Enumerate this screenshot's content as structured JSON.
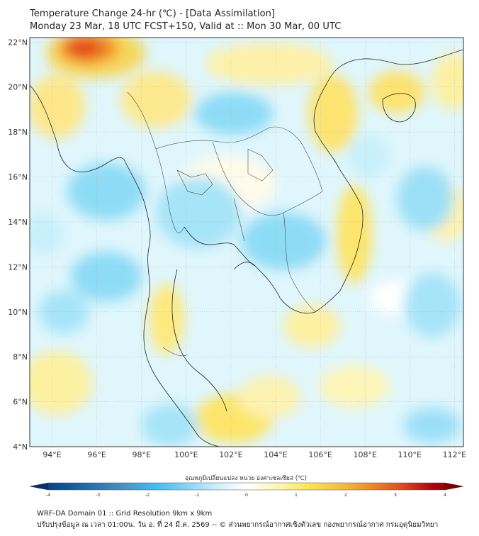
{
  "header": {
    "title": "Temperature Change 24-hr (℃) - [Data Assimilation]",
    "subtitle": "Monday 23 Mar, 18 UTC FCST+150, Valid at :: Mon 30 Mar, 00 UTC"
  },
  "map": {
    "lat_labels": [
      "22°N",
      "20°N",
      "18°N",
      "16°N",
      "14°N",
      "12°N",
      "10°N",
      "8°N",
      "6°N",
      "4°N"
    ],
    "lon_labels": [
      "94°E",
      "96°E",
      "98°E",
      "100°E",
      "102°E",
      "104°E",
      "106°E",
      "108°E",
      "110°E",
      "112°E"
    ],
    "lat_range": [
      4,
      22.2
    ],
    "lon_range": [
      93,
      112.4
    ]
  },
  "colorbar": {
    "label": "อุณหภูมิเปลี่ยนแปลง หน่วย องศาเซลเซียส (℃)",
    "ticks": [
      "-4",
      "-3",
      "-2",
      "-1",
      "0",
      "1",
      "2",
      "3",
      "4"
    ],
    "colors": [
      "#08306b",
      "#08519c",
      "#2171b5",
      "#4292c6",
      "#38bdf8",
      "#7dd3fc",
      "#c8f0fb",
      "#ffffff",
      "#fff7b0",
      "#fde54c",
      "#f6c23a",
      "#f28a1e",
      "#e34a1c",
      "#b3000c",
      "#7a0000"
    ]
  },
  "footer": {
    "line1": "WRF-DA Domain 01 :: Grid Resolution 9km x 9km",
    "line2": "ปรับปรุงข้อมูล ณ เวลา 01:00น. วัน อ. ที่ 24 มี.ค. 2569 -- © ส่วนพยากรณ์อากาศเชิงตัวเลข กองพยากรณ์อากาศ กรมอุตุนิยมวิทยา"
  }
}
